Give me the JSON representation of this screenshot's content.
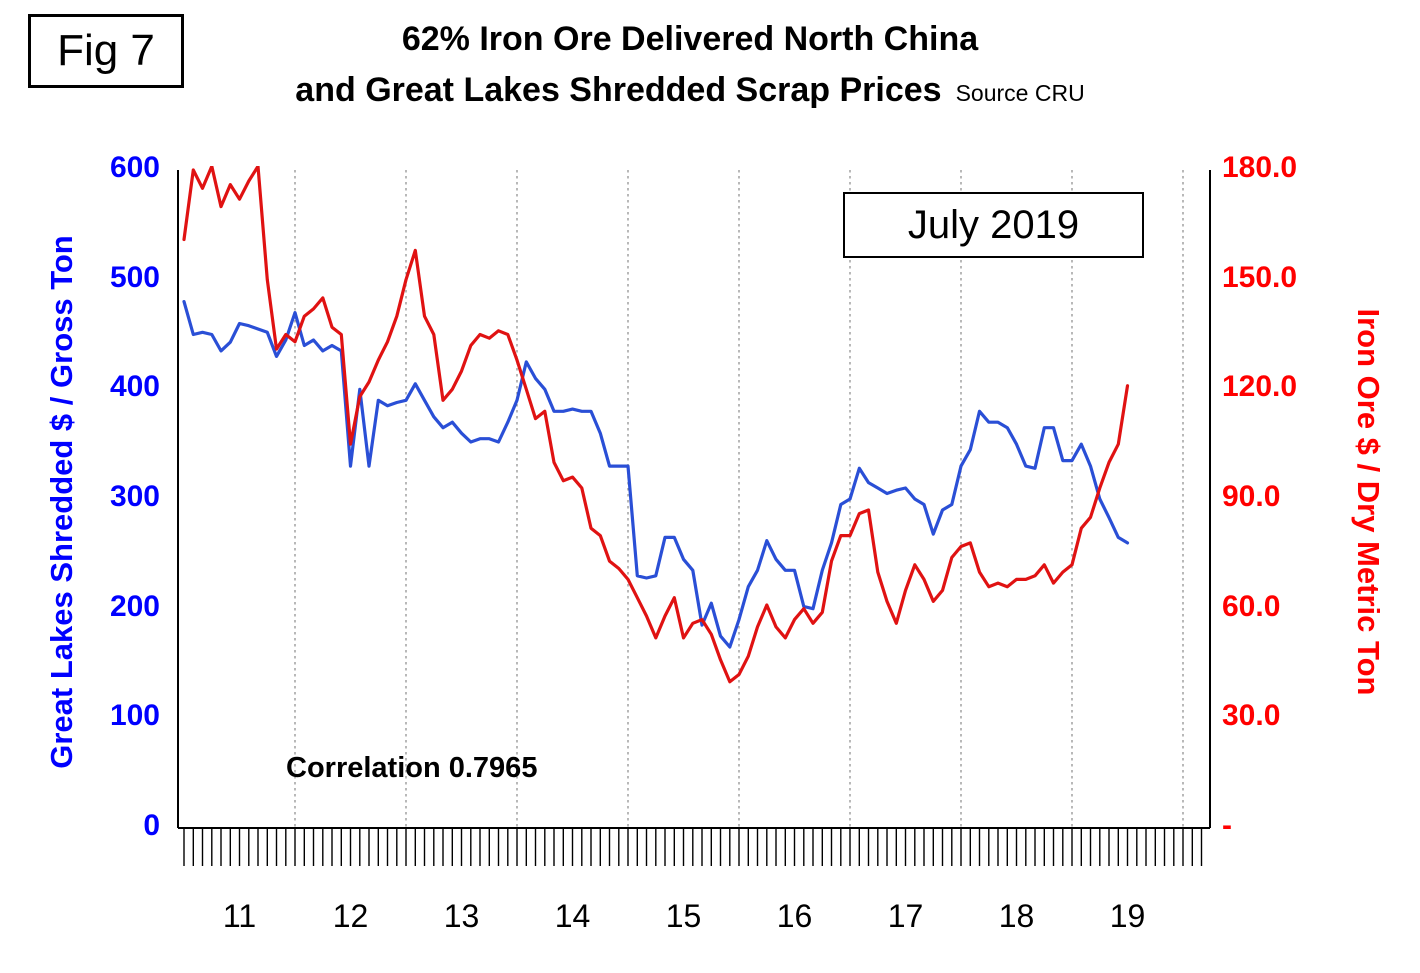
{
  "fig_label": "Fig 7",
  "title": {
    "line1": "62% Iron Ore Delivered North China",
    "line2": "and Great Lakes Shredded Scrap Prices",
    "source": "Source CRU"
  },
  "annotation": "July 2019",
  "correlation": "Correlation 0.7965",
  "left_axis": {
    "title": "Great Lakes Shredded $ / Gross Ton",
    "tick_labels": [
      "0",
      "100",
      "200",
      "300",
      "400",
      "500",
      "600"
    ],
    "min": 0,
    "max": 600,
    "color": "#0000ff"
  },
  "right_axis": {
    "title": "Iron Ore $ / Dry Metric Ton",
    "tick_labels": [
      "-",
      "30.0",
      "60.0",
      "90.0",
      "120.0",
      "150.0",
      "180.0"
    ],
    "min": 0,
    "max": 180,
    "color": "#ff0000"
  },
  "x_axis": {
    "year_labels": [
      "11",
      "12",
      "13",
      "14",
      "15",
      "16",
      "17",
      "18",
      "19"
    ]
  },
  "chart_data": {
    "type": "line",
    "title": "62% Iron Ore Delivered North China and Great Lakes Shredded Scrap Prices",
    "x_frequency": "monthly",
    "x_start": "2011-01",
    "x_end": "2019-07",
    "grid": "vertical-dotted-yearly",
    "legend_position": "none",
    "left_ylim": [
      0,
      600
    ],
    "right_ylim": [
      0,
      180
    ],
    "series": [
      {
        "name": "Great Lakes Shredded Scrap Price",
        "units": "$ / Gross Ton",
        "axis": "left",
        "color": "#2a4fd6",
        "values": [
          480,
          450,
          452,
          450,
          435,
          443,
          460,
          458,
          455,
          452,
          430,
          445,
          470,
          440,
          445,
          435,
          440,
          435,
          330,
          400,
          330,
          390,
          385,
          388,
          390,
          405,
          390,
          375,
          365,
          370,
          360,
          352,
          355,
          355,
          352,
          370,
          390,
          425,
          410,
          400,
          380,
          380,
          382,
          380,
          380,
          360,
          330,
          330,
          330,
          230,
          228,
          230,
          265,
          265,
          245,
          235,
          185,
          205,
          175,
          165,
          190,
          220,
          235,
          262,
          245,
          235,
          235,
          202,
          200,
          235,
          260,
          295,
          300,
          328,
          315,
          310,
          305,
          308,
          310,
          300,
          295,
          268,
          290,
          295,
          330,
          345,
          380,
          370,
          370,
          365,
          350,
          330,
          328,
          365,
          365,
          335,
          335,
          350,
          330,
          300,
          283,
          265,
          260
        ]
      },
      {
        "name": "62% Iron Ore Delivered North China",
        "units": "$ / Dry Metric Ton",
        "axis": "right",
        "color": "#e01212",
        "values": [
          161,
          180,
          175,
          181,
          170,
          176,
          172,
          177,
          181,
          150,
          131,
          135,
          133,
          140,
          142,
          145,
          137,
          135,
          105,
          118,
          122,
          128,
          133,
          140,
          150,
          158,
          140,
          135,
          117,
          120,
          125,
          132,
          135,
          134,
          136,
          135,
          128,
          120,
          112,
          114,
          100,
          95,
          96,
          93,
          82,
          80,
          73,
          71,
          68,
          63,
          58,
          52,
          58,
          63,
          52,
          56,
          57,
          53,
          46,
          40,
          42,
          47,
          55,
          61,
          55,
          52,
          57,
          60,
          56,
          59,
          73,
          80,
          80,
          86,
          87,
          70,
          62,
          56,
          65,
          72,
          68,
          62,
          65,
          74,
          77,
          78,
          70,
          66,
          67,
          66,
          68,
          68,
          69,
          72,
          67,
          70,
          72,
          82,
          85,
          93,
          100,
          105,
          121
        ]
      }
    ]
  }
}
